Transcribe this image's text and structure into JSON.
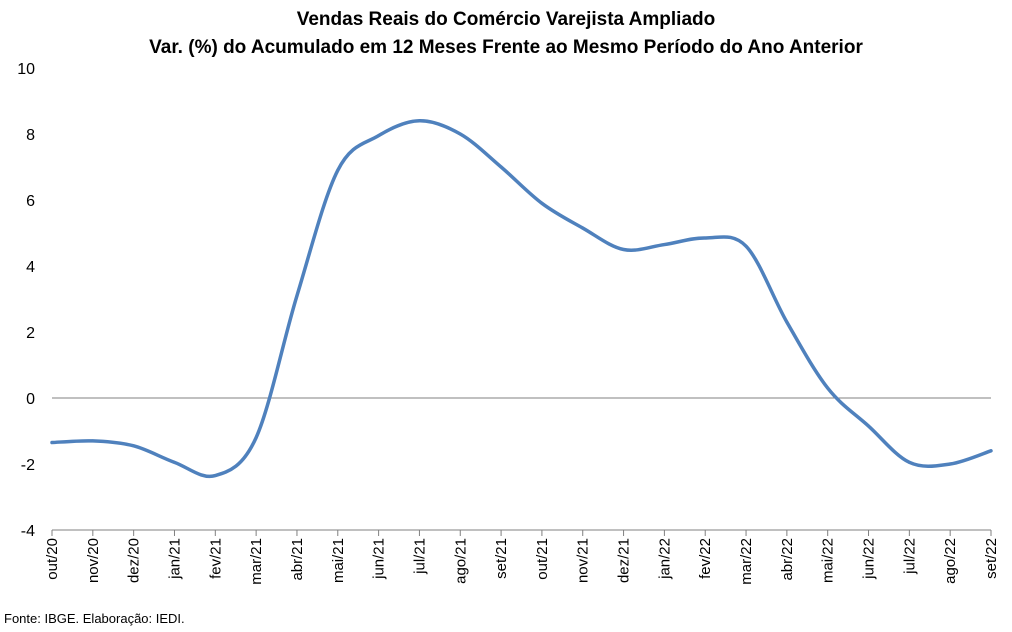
{
  "chart_data": {
    "type": "line",
    "title": "Vendas Reais do Comércio Varejista Ampliado",
    "subtitle": "Var. (%) do Acumulado em 12 Meses Frente ao Mesmo Período do Ano Anterior",
    "xlabel": "",
    "ylabel": "",
    "ylim": [
      -4,
      10
    ],
    "yticks": [
      -4,
      -2,
      0,
      2,
      4,
      6,
      8,
      10
    ],
    "grid": false,
    "legend": "none",
    "categories": [
      "out/20",
      "nov/20",
      "dez/20",
      "jan/21",
      "fev/21",
      "mar/21",
      "abr/21",
      "mai/21",
      "jun/21",
      "jul/21",
      "ago/21",
      "set/21",
      "out/21",
      "nov/21",
      "dez/21",
      "jan/22",
      "fev/22",
      "mar/22",
      "abr/22",
      "mai/22",
      "jun/22",
      "jul/22",
      "ago/22",
      "set/22"
    ],
    "series": [
      {
        "color": "#4f81bd",
        "values": [
          -1.35,
          -1.3,
          -1.45,
          -1.95,
          -2.35,
          -1.2,
          3.1,
          6.9,
          7.95,
          8.4,
          8.0,
          7.0,
          5.9,
          5.15,
          4.5,
          4.65,
          4.85,
          4.6,
          2.3,
          0.3,
          -0.85,
          -1.95,
          -2.0,
          -1.6
        ]
      }
    ],
    "source": "Fonte: IBGE. Elaboração: IEDI.",
    "line_color": "#4f81bd",
    "zero_line_color": "#808080"
  }
}
